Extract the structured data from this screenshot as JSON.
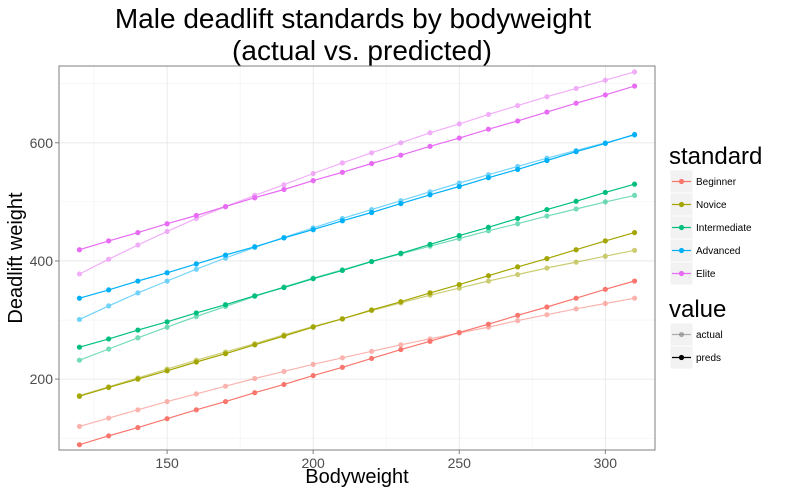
{
  "chart_data": {
    "type": "line",
    "title": [
      "Male deadlift standards by bodyweight",
      "(actual vs. predicted)"
    ],
    "xlabel": "Bodyweight",
    "ylabel": "Deadlift weight",
    "xlim": [
      113,
      317
    ],
    "ylim": [
      80,
      730
    ],
    "x_ticks": [
      150,
      200,
      250,
      300
    ],
    "y_ticks": [
      200,
      400,
      600
    ],
    "grid": true,
    "legend_position": "right",
    "x": [
      120,
      130,
      140,
      150,
      160,
      170,
      180,
      190,
      200,
      210,
      220,
      230,
      240,
      250,
      260,
      270,
      280,
      290,
      300,
      310
    ],
    "series": [
      {
        "name": "Beginner",
        "color": "#F8766D",
        "actual": [
          120,
          134,
          148,
          162,
          175,
          188,
          201,
          213,
          225,
          236,
          247,
          258,
          268,
          278,
          288,
          299,
          309,
          319,
          328,
          337
        ],
        "preds": [
          89,
          104,
          118,
          133,
          148,
          162,
          177,
          191,
          206,
          220,
          235,
          250,
          264,
          279,
          293,
          308,
          322,
          337,
          352,
          366
        ]
      },
      {
        "name": "Novice",
        "color": "#A3A500",
        "actual": [
          172,
          187,
          202,
          217,
          232,
          246,
          260,
          275,
          289,
          302,
          316,
          329,
          342,
          354,
          366,
          377,
          388,
          398,
          408,
          418
        ],
        "preds": [
          171,
          186,
          200,
          214,
          229,
          243,
          258,
          273,
          288,
          302,
          317,
          331,
          346,
          360,
          375,
          390,
          404,
          419,
          434,
          448
        ]
      },
      {
        "name": "Intermediate",
        "color": "#00BF7D",
        "actual": [
          232,
          251,
          270,
          288,
          306,
          323,
          340,
          356,
          371,
          385,
          399,
          412,
          425,
          438,
          451,
          463,
          476,
          488,
          500,
          511
        ],
        "preds": [
          254,
          268,
          283,
          297,
          312,
          326,
          341,
          355,
          370,
          384,
          399,
          413,
          428,
          443,
          457,
          472,
          487,
          501,
          516,
          530
        ]
      },
      {
        "name": "Advanced",
        "color": "#00B0F6",
        "actual": [
          301,
          324,
          346,
          366,
          386,
          405,
          423,
          440,
          456,
          472,
          487,
          502,
          517,
          532,
          546,
          560,
          574,
          587,
          600,
          613
        ],
        "preds": [
          337,
          351,
          366,
          380,
          395,
          410,
          424,
          439,
          453,
          468,
          482,
          497,
          512,
          526,
          541,
          555,
          570,
          585,
          599,
          614
        ]
      },
      {
        "name": "Elite",
        "color": "#E76BF3",
        "actual": [
          378,
          403,
          427,
          450,
          472,
          492,
          511,
          529,
          548,
          566,
          583,
          600,
          617,
          632,
          648,
          663,
          678,
          692,
          706,
          720
        ],
        "preds": [
          419,
          434,
          448,
          463,
          477,
          492,
          507,
          521,
          536,
          550,
          565,
          579,
          594,
          608,
          623,
          637,
          652,
          667,
          681,
          696
        ]
      }
    ],
    "legend": {
      "standard_title": "standard",
      "value_title": "value",
      "value_items": [
        "actual",
        "preds"
      ]
    }
  }
}
